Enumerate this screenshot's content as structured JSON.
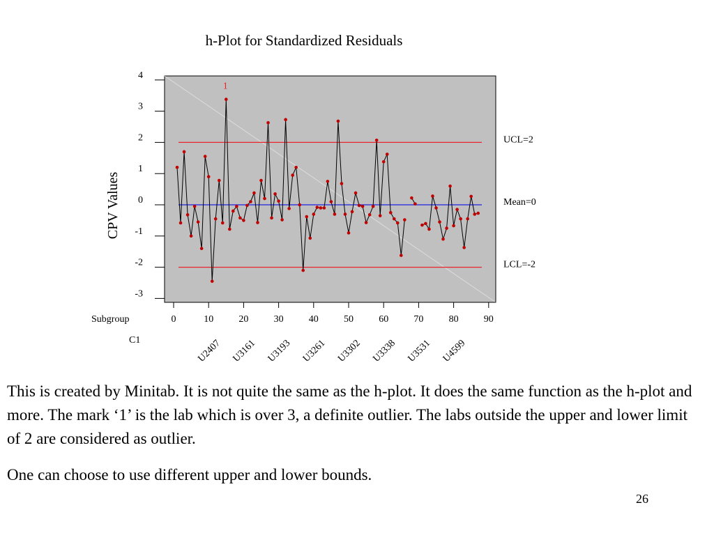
{
  "chart_data": {
    "type": "line",
    "title": "h-Plot for Standardized Residuals",
    "ylabel": "CPV Values",
    "x_axis_row_label": "Subgroup",
    "group_row_label": "C1",
    "xlim": [
      0,
      90
    ],
    "ylim": [
      -3,
      4
    ],
    "x_ticks": [
      0,
      10,
      20,
      30,
      40,
      50,
      60,
      70,
      80,
      90
    ],
    "y_ticks": [
      4,
      3,
      2,
      1,
      0,
      -1,
      -2,
      -3
    ],
    "group_labels": [
      {
        "x": 10,
        "label": "U2407"
      },
      {
        "x": 20,
        "label": "U3161"
      },
      {
        "x": 30,
        "label": "U3193"
      },
      {
        "x": 40,
        "label": "U3261"
      },
      {
        "x": 50,
        "label": "U3302"
      },
      {
        "x": 60,
        "label": "U3338"
      },
      {
        "x": 70,
        "label": "U3531"
      },
      {
        "x": 80,
        "label": "U4599"
      }
    ],
    "reference_lines": [
      {
        "value": 2,
        "label": "UCL=2",
        "color": "#e8242c"
      },
      {
        "value": 0,
        "label": "Mean=0",
        "color": "#2020e0"
      },
      {
        "value": -2,
        "label": "LCL=-2",
        "color": "#e8242c"
      }
    ],
    "annotation": {
      "x": 15,
      "text": "1",
      "color": "#e8242c"
    },
    "grid": false,
    "plot_background": "#c0c0c0",
    "series_color": "#000000",
    "marker_color": "#c00000",
    "series": [
      {
        "x": [
          1,
          2,
          3,
          4,
          5,
          6,
          7,
          8,
          9,
          10,
          11,
          12,
          13,
          14,
          15,
          16,
          17,
          18,
          19,
          20,
          21,
          22,
          23,
          24,
          25,
          26,
          27,
          28,
          29,
          30,
          31,
          32,
          33,
          34,
          35,
          36,
          37,
          38,
          39,
          40,
          41,
          42,
          43,
          44,
          45,
          46,
          47,
          48,
          49,
          50,
          51,
          52,
          53,
          54,
          55,
          56,
          57,
          58,
          59,
          60,
          61,
          62,
          63,
          64,
          65,
          66,
          68,
          69,
          71,
          72,
          73,
          74,
          75,
          76,
          77,
          78,
          79,
          80,
          81,
          82,
          83,
          84,
          85,
          86,
          87
        ],
        "values": [
          1.2,
          -0.58,
          1.7,
          -0.32,
          -1.0,
          -0.05,
          -0.55,
          -1.4,
          1.55,
          0.9,
          -2.45,
          -0.45,
          0.78,
          -0.58,
          3.38,
          -0.78,
          -0.2,
          -0.05,
          -0.42,
          -0.5,
          -0.02,
          0.1,
          0.38,
          -0.57,
          0.78,
          0.2,
          2.63,
          -0.42,
          0.35,
          0.12,
          -0.48,
          2.73,
          -0.12,
          0.95,
          1.2,
          0.0,
          -2.1,
          -0.38,
          -1.07,
          -0.3,
          -0.08,
          -0.1,
          -0.1,
          0.75,
          0.1,
          -0.3,
          2.68,
          0.68,
          -0.3,
          -0.9,
          -0.22,
          0.38,
          -0.02,
          -0.05,
          -0.57,
          -0.32,
          -0.05,
          2.07,
          -0.35,
          1.38,
          1.62,
          -0.25,
          -0.45,
          -0.58,
          -1.62,
          -0.48,
          0.22,
          0.03,
          -0.65,
          -0.6,
          -0.78,
          0.28,
          -0.1,
          -0.55,
          -1.1,
          -0.75,
          0.6,
          -0.67,
          -0.15,
          -0.45,
          -1.37,
          -0.45,
          0.27,
          -0.3,
          -0.27
        ]
      }
    ]
  },
  "text": {
    "paragraph1": "This is created by Minitab. It is not quite the same as the h-plot. It does the same function as the h-plot and more. The mark ‘1’ is the lab which is over 3, a definite outlier. The labs outside the upper and lower limit of 2 are considered as outlier.",
    "paragraph2": "One can choose to use different upper and lower bounds.",
    "page_number": "26"
  }
}
